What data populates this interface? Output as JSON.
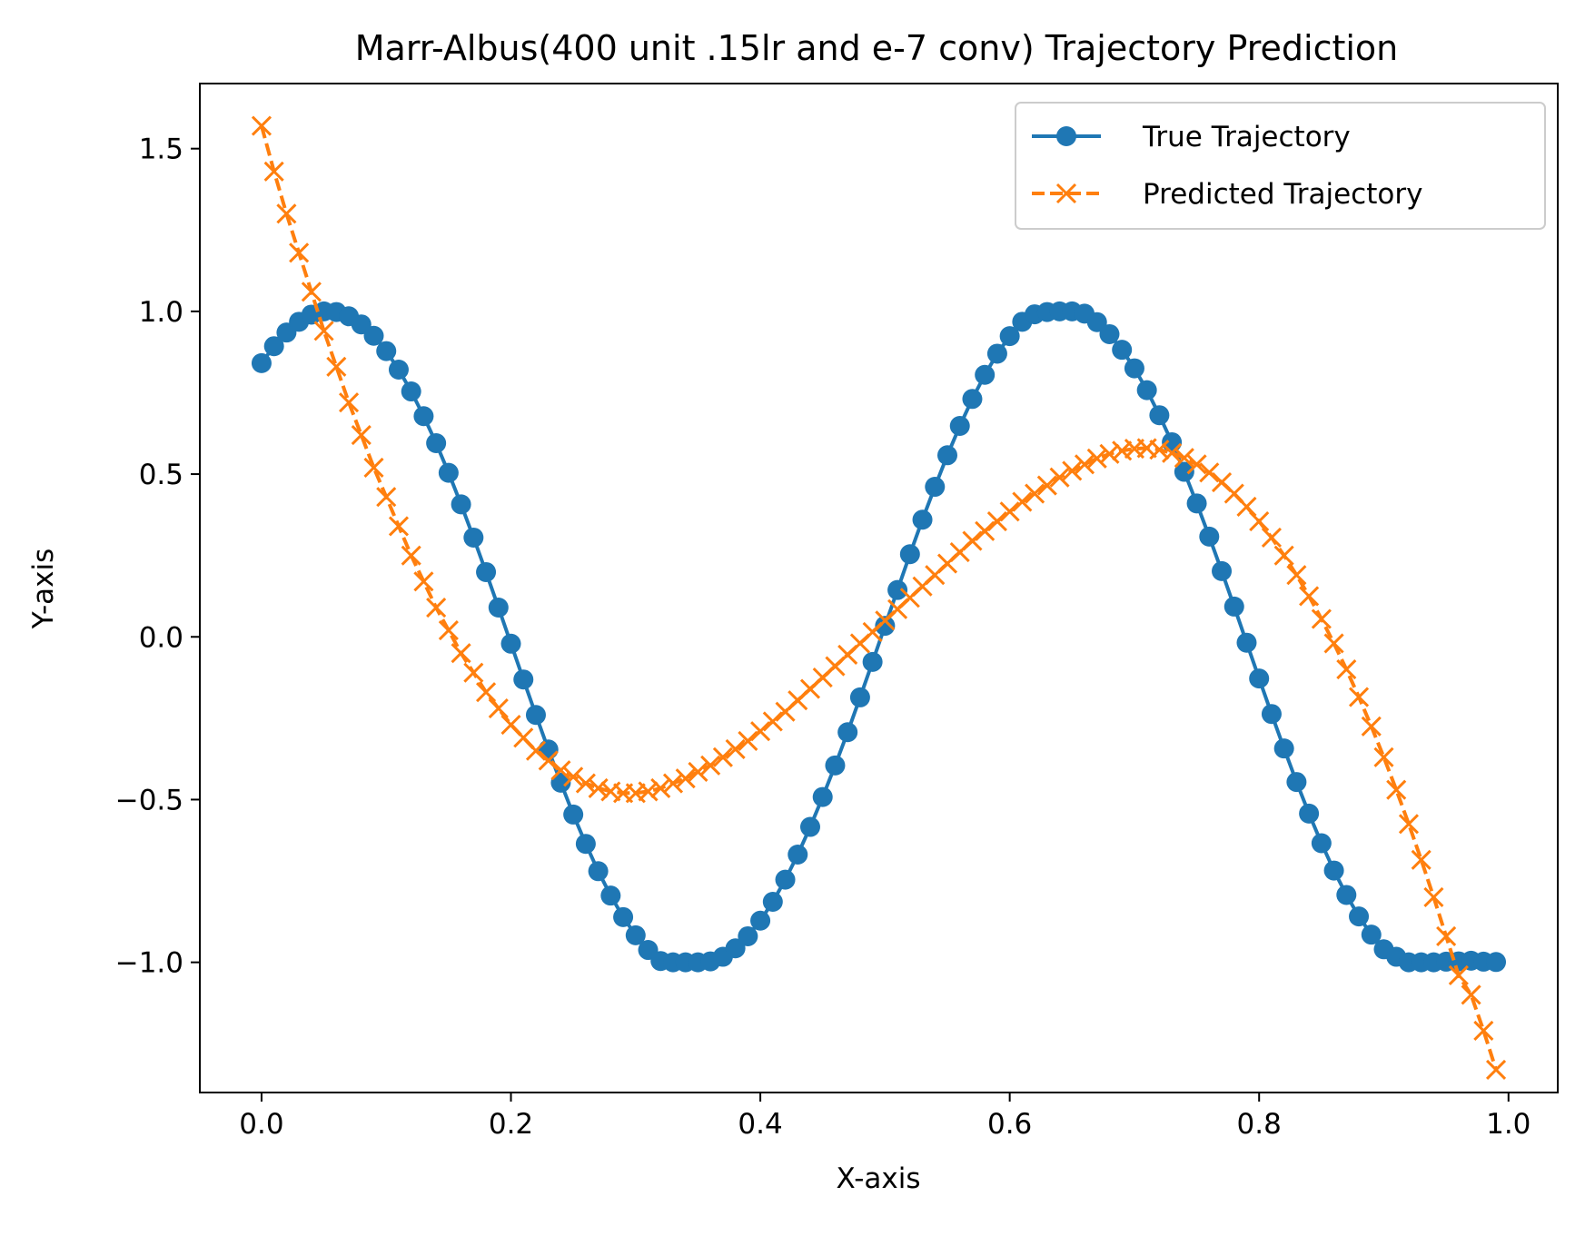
{
  "chart_data": {
    "type": "line",
    "title": "Marr-Albus(400 unit .15lr and e-7 conv) Trajectory Prediction",
    "xlabel": "X-axis",
    "ylabel": "Y-axis",
    "xlim": [
      -0.0495,
      1.0395
    ],
    "ylim": [
      -1.4,
      1.7
    ],
    "xticks": [
      0.0,
      0.2,
      0.4,
      0.6,
      0.8,
      1.0
    ],
    "xtick_labels": [
      "0.0",
      "0.2",
      "0.4",
      "0.6",
      "0.8",
      "1.0"
    ],
    "yticks": [
      -1.0,
      -0.5,
      0.0,
      0.5,
      1.0,
      1.5
    ],
    "ytick_labels": [
      "−1.0",
      "−0.5",
      "0.0",
      "0.5",
      "1.0",
      "1.5"
    ],
    "grid": false,
    "legend_position": "top-right",
    "x": [
      0.0,
      0.01,
      0.02,
      0.03,
      0.04,
      0.05,
      0.06,
      0.07,
      0.08,
      0.09,
      0.1,
      0.11,
      0.12,
      0.13,
      0.14,
      0.15,
      0.16,
      0.17,
      0.18,
      0.19,
      0.2,
      0.21,
      0.22,
      0.23,
      0.24,
      0.25,
      0.26,
      0.27,
      0.28,
      0.29,
      0.3,
      0.31,
      0.32,
      0.33,
      0.34,
      0.35,
      0.36,
      0.37,
      0.38,
      0.39,
      0.4,
      0.41,
      0.42,
      0.43,
      0.44,
      0.45,
      0.46,
      0.47,
      0.48,
      0.49,
      0.5,
      0.51,
      0.52,
      0.53,
      0.54,
      0.55,
      0.56,
      0.57,
      0.58,
      0.59,
      0.6,
      0.61,
      0.62,
      0.63,
      0.64,
      0.65,
      0.66,
      0.67,
      0.68,
      0.69,
      0.7,
      0.71,
      0.72,
      0.73,
      0.74,
      0.75,
      0.76,
      0.77,
      0.78,
      0.79,
      0.8,
      0.81,
      0.82,
      0.83,
      0.84,
      0.85,
      0.86,
      0.87,
      0.88,
      0.89,
      0.9,
      0.91,
      0.92,
      0.93,
      0.94,
      0.95,
      0.96,
      0.97,
      0.98,
      0.99
    ],
    "series": [
      {
        "name": "True Trajectory",
        "color": "#1f77b4",
        "marker": "circle",
        "linestyle": "solid",
        "values": [
          0.841,
          0.893,
          0.935,
          0.968,
          0.99,
          1.0,
          0.998,
          0.985,
          0.96,
          0.925,
          0.878,
          0.821,
          0.754,
          0.678,
          0.595,
          0.504,
          0.407,
          0.305,
          0.199,
          0.09,
          -0.021,
          -0.131,
          -0.24,
          -0.346,
          -0.448,
          -0.546,
          -0.636,
          -0.72,
          -0.795,
          -0.861,
          -0.917,
          -0.962,
          -0.996,
          -1.0,
          -1.0,
          -1.0,
          -0.997,
          -0.983,
          -0.957,
          -0.92,
          -0.872,
          -0.814,
          -0.746,
          -0.669,
          -0.584,
          -0.492,
          -0.395,
          -0.293,
          -0.186,
          -0.077,
          0.034,
          0.144,
          0.254,
          0.36,
          0.461,
          0.558,
          0.648,
          0.731,
          0.805,
          0.87,
          0.924,
          0.968,
          0.991,
          0.998,
          1.0,
          1.0,
          0.993,
          0.967,
          0.93,
          0.882,
          0.825,
          0.758,
          0.681,
          0.598,
          0.507,
          0.41,
          0.308,
          0.202,
          0.093,
          -0.018,
          -0.128,
          -0.237,
          -0.343,
          -0.446,
          -0.543,
          -0.634,
          -0.718,
          -0.793,
          -0.859,
          -0.915,
          -0.96,
          -0.983,
          -1.0,
          -1.0,
          -1.0,
          -0.998,
          -0.997,
          -0.995,
          -0.998,
          -0.999
        ]
      },
      {
        "name": "Predicted Trajectory",
        "color": "#ff7f0e",
        "marker": "x",
        "linestyle": "dashed",
        "values": [
          1.57,
          1.43,
          1.3,
          1.18,
          1.06,
          0.94,
          0.83,
          0.72,
          0.62,
          0.52,
          0.43,
          0.34,
          0.25,
          0.17,
          0.09,
          0.02,
          -0.05,
          -0.11,
          -0.17,
          -0.22,
          -0.27,
          -0.31,
          -0.35,
          -0.38,
          -0.41,
          -0.43,
          -0.45,
          -0.465,
          -0.475,
          -0.48,
          -0.48,
          -0.475,
          -0.465,
          -0.45,
          -0.435,
          -0.415,
          -0.395,
          -0.37,
          -0.345,
          -0.32,
          -0.29,
          -0.26,
          -0.23,
          -0.195,
          -0.16,
          -0.125,
          -0.09,
          -0.055,
          -0.02,
          0.015,
          0.05,
          0.085,
          0.12,
          0.155,
          0.19,
          0.225,
          0.26,
          0.295,
          0.325,
          0.355,
          0.385,
          0.415,
          0.44,
          0.465,
          0.49,
          0.51,
          0.53,
          0.548,
          0.562,
          0.572,
          0.578,
          0.58,
          0.575,
          0.565,
          0.55,
          0.53,
          0.505,
          0.475,
          0.44,
          0.4,
          0.355,
          0.305,
          0.25,
          0.19,
          0.125,
          0.055,
          -0.02,
          -0.1,
          -0.185,
          -0.275,
          -0.37,
          -0.47,
          -0.575,
          -0.685,
          -0.8,
          -0.92,
          -1.04,
          -1.1,
          -1.21,
          -1.33
        ]
      }
    ]
  }
}
